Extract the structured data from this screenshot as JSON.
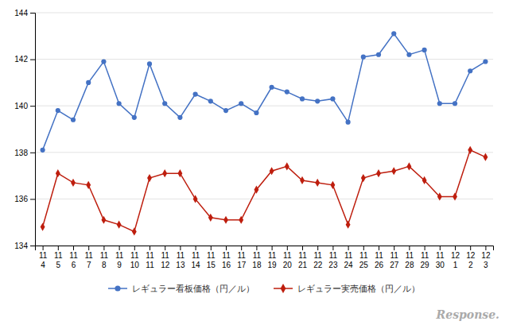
{
  "chart_data": {
    "type": "line",
    "categories": [
      "11\n4",
      "11\n5",
      "11\n6",
      "11\n7",
      "11\n8",
      "11\n9",
      "11\n10",
      "11\n11",
      "11\n12",
      "11\n13",
      "11\n14",
      "11\n15",
      "11\n16",
      "11\n17",
      "11\n18",
      "11\n19",
      "11\n20",
      "11\n21",
      "11\n22",
      "11\n23",
      "11\n24",
      "11\n25",
      "11\n26",
      "11\n27",
      "11\n28",
      "11\n29",
      "11\n30",
      "12\n1",
      "12\n2",
      "12\n3"
    ],
    "series": [
      {
        "name": "レギュラー看板価格（円／ル）",
        "color": "#4472C4",
        "marker": "circle",
        "values": [
          138.1,
          139.8,
          139.4,
          141.0,
          141.9,
          140.1,
          139.5,
          141.8,
          140.1,
          139.5,
          140.5,
          140.2,
          139.8,
          140.1,
          139.7,
          140.8,
          140.6,
          140.3,
          140.2,
          140.3,
          139.3,
          142.1,
          142.2,
          143.1,
          142.2,
          142.4,
          140.1,
          140.1,
          141.5,
          141.9
        ]
      },
      {
        "name": "レギュラー実売価格（円／ル）",
        "color": "#BE1E0E",
        "marker": "diamond",
        "values": [
          134.8,
          137.1,
          136.7,
          136.6,
          135.1,
          134.9,
          134.6,
          136.9,
          137.1,
          137.1,
          136.0,
          135.2,
          135.1,
          135.1,
          136.4,
          137.2,
          137.4,
          136.8,
          136.7,
          136.6,
          134.9,
          136.9,
          137.1,
          137.2,
          137.4,
          136.8,
          136.1,
          136.1,
          138.1,
          137.8
        ]
      }
    ],
    "ylim": [
      134,
      144
    ],
    "yticks": [
      134,
      136,
      138,
      140,
      142,
      144
    ],
    "grid": true,
    "legend": "bottom",
    "annotations": [
      {
        "text": "Response.",
        "color": "#AAAAAA"
      }
    ]
  }
}
